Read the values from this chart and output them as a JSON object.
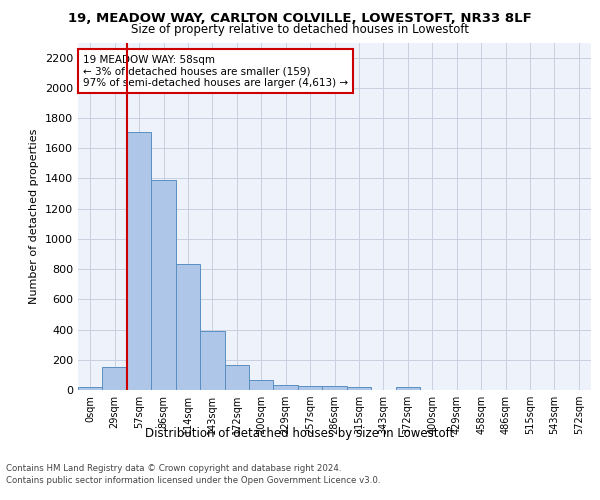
{
  "title1": "19, MEADOW WAY, CARLTON COLVILLE, LOWESTOFT, NR33 8LF",
  "title2": "Size of property relative to detached houses in Lowestoft",
  "xlabel": "Distribution of detached houses by size in Lowestoft",
  "ylabel": "Number of detached properties",
  "bin_labels": [
    "0sqm",
    "29sqm",
    "57sqm",
    "86sqm",
    "114sqm",
    "143sqm",
    "172sqm",
    "200sqm",
    "229sqm",
    "257sqm",
    "286sqm",
    "315sqm",
    "343sqm",
    "372sqm",
    "400sqm",
    "429sqm",
    "458sqm",
    "486sqm",
    "515sqm",
    "543sqm",
    "572sqm"
  ],
  "bar_values": [
    20,
    155,
    1710,
    1390,
    835,
    390,
    165,
    68,
    32,
    28,
    28,
    20,
    0,
    18,
    0,
    0,
    0,
    0,
    0,
    0,
    0
  ],
  "bar_color": "#aec6e8",
  "bar_edge_color": "#5a8fc2",
  "red_line_color": "#cc0000",
  "annotation_text": "19 MEADOW WAY: 58sqm\n← 3% of detached houses are smaller (159)\n97% of semi-detached houses are larger (4,613) →",
  "annotation_box_color": "#ffffff",
  "annotation_box_edge": "#cc0000",
  "ylim": [
    0,
    2300
  ],
  "yticks": [
    0,
    200,
    400,
    600,
    800,
    1000,
    1200,
    1400,
    1600,
    1800,
    2000,
    2200
  ],
  "footer1": "Contains HM Land Registry data © Crown copyright and database right 2024.",
  "footer2": "Contains public sector information licensed under the Open Government Licence v3.0.",
  "bg_color": "#eef2fb",
  "grid_color": "#c8cfe0"
}
